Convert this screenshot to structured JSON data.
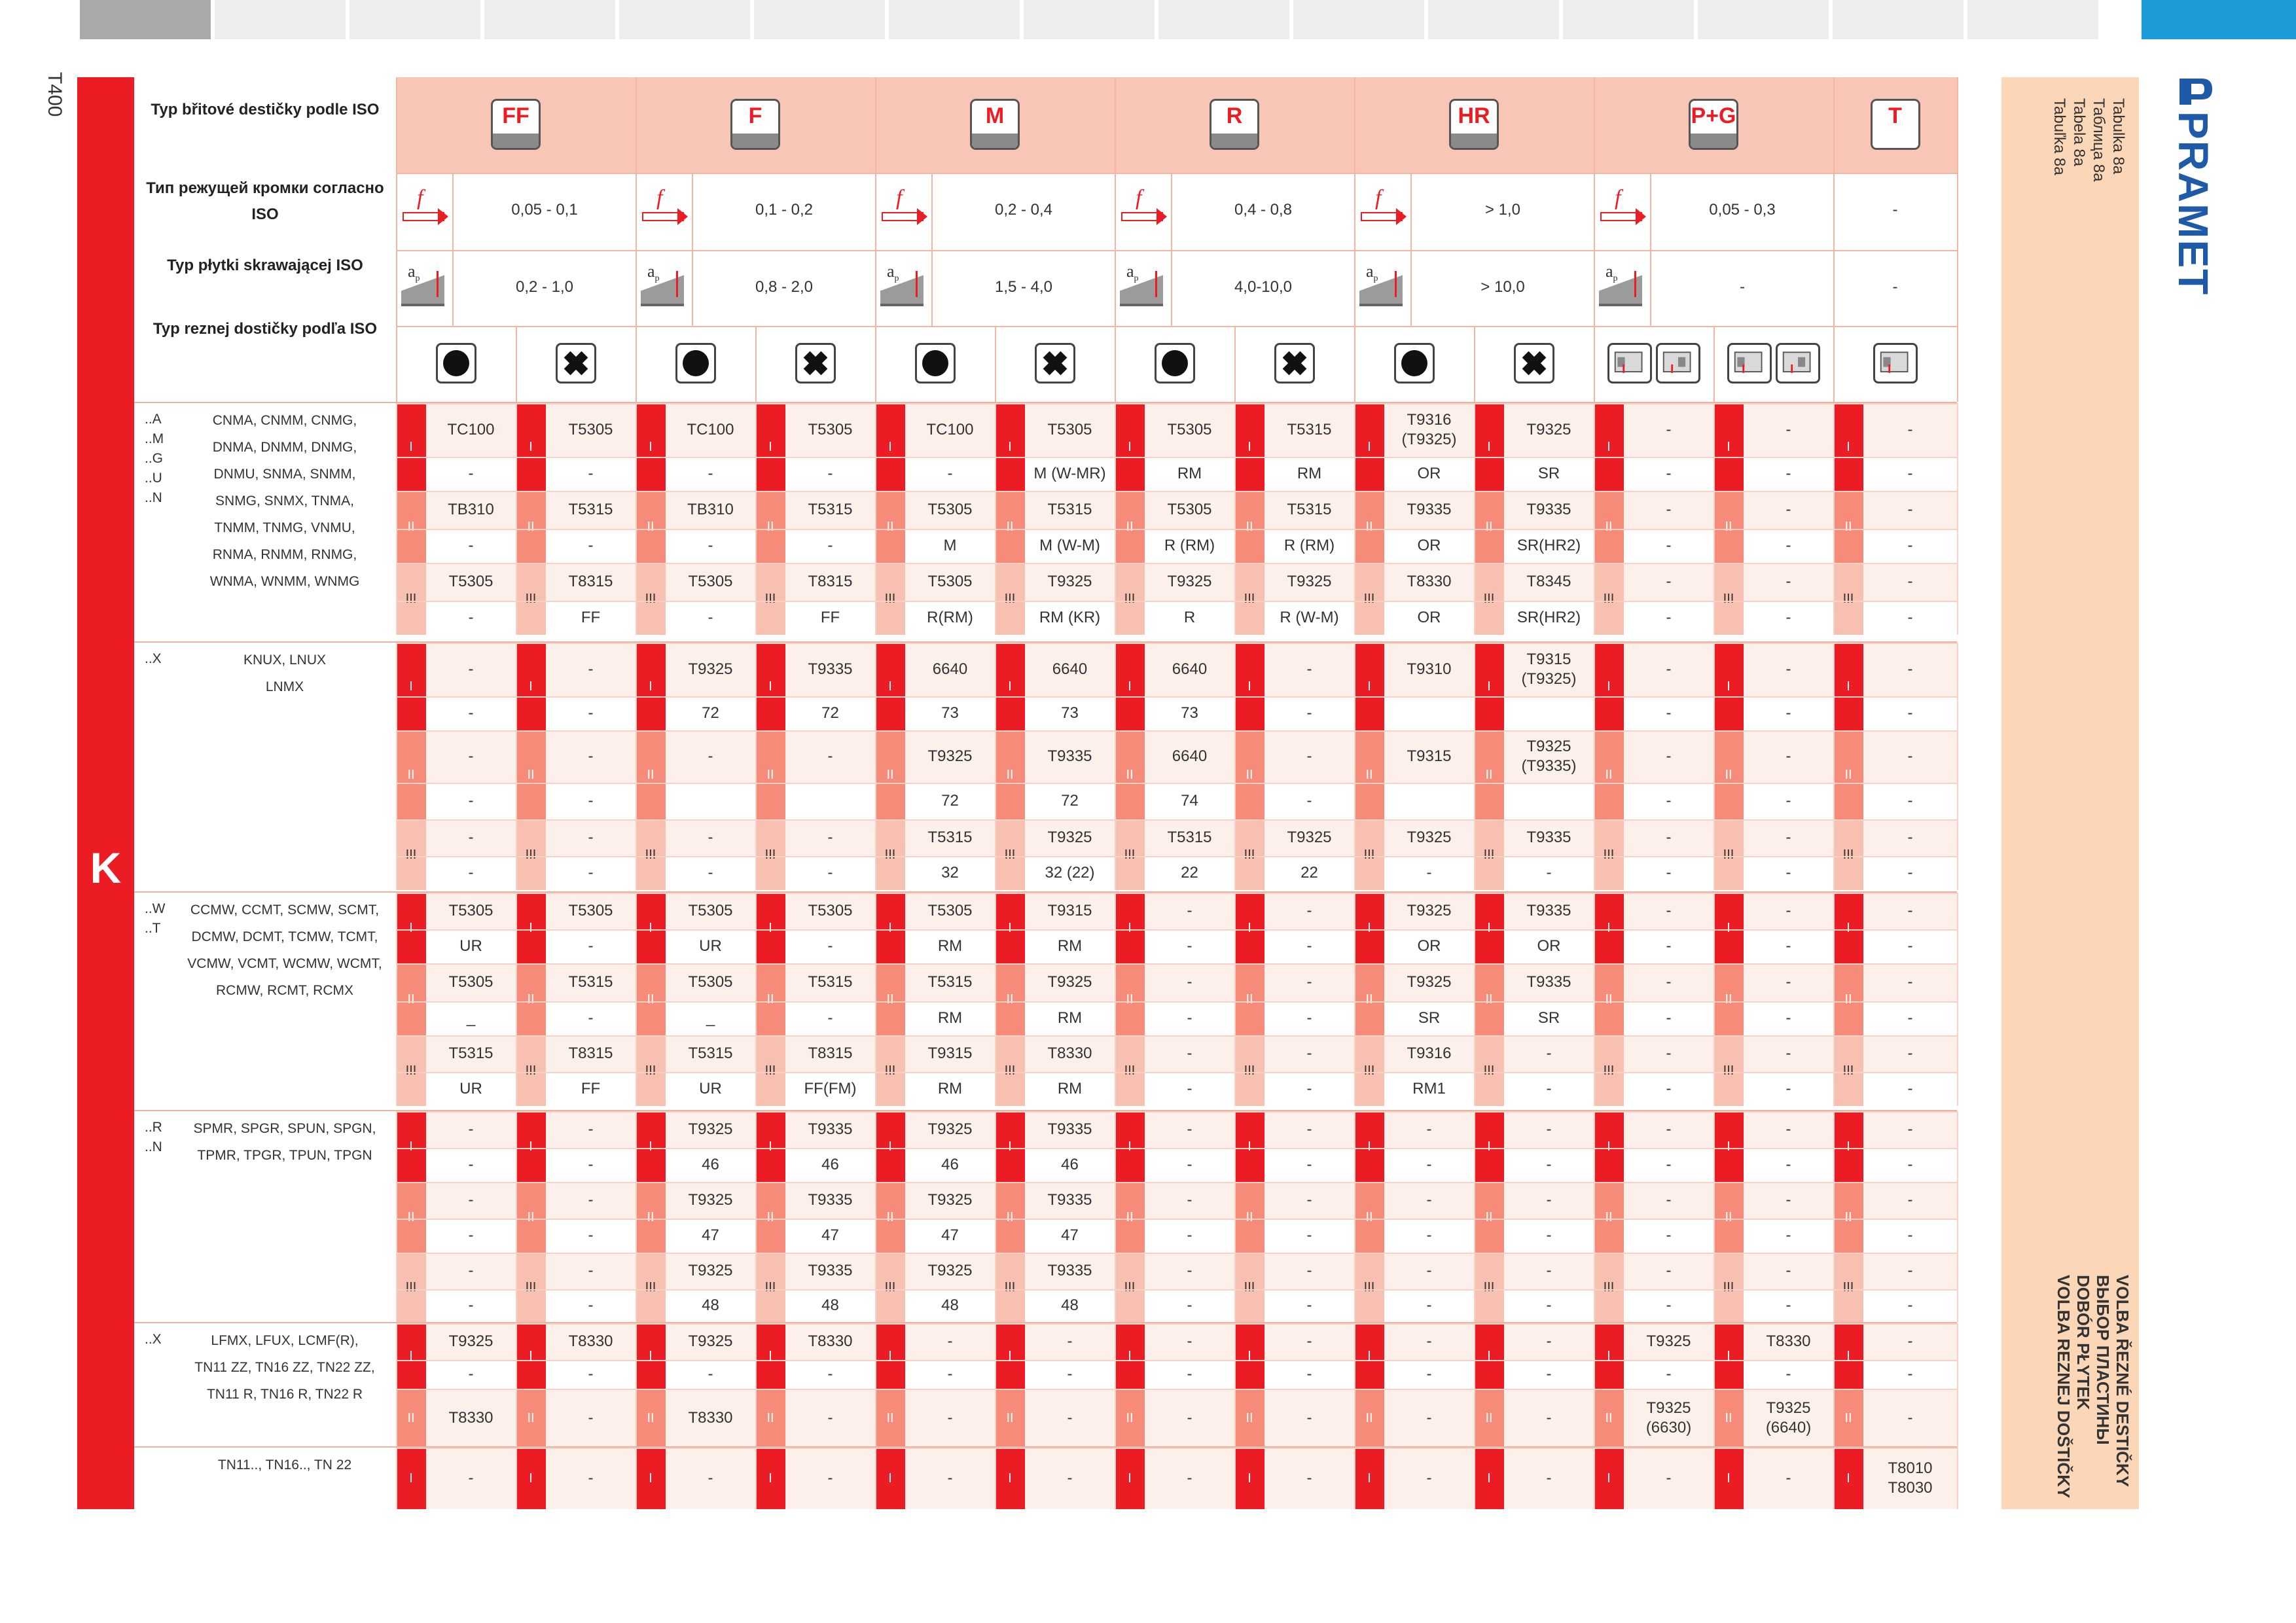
{
  "page_number": "T400",
  "side_letter": "K",
  "brand": "PRAMET",
  "tab_labels": [
    "Tabulka 8a",
    "Таблица 8a",
    "Tabela 8a",
    "Tabuľka 8a"
  ],
  "titles": [
    "VOLBA ŘEZNÉ DESTIČKY",
    "ВЫБОР ПЛАСТИНЫ",
    "DOBÓR PŁYTEK",
    "VOLBA REZNEJ DOŠTIČKY"
  ],
  "header_labels": [
    "Typ břitové destičky podle ISO",
    "Тип режущей кромки согласно ISO",
    "Typ płytki skrawającej ISO",
    "Typ reznej dostičky podľa ISO"
  ],
  "categories": [
    {
      "label": "FF",
      "feed": "0,05 - 0,1",
      "depth": "0,2 - 1,0"
    },
    {
      "label": "F",
      "feed": "0,1 - 0,2",
      "depth": "0,8 - 2,0"
    },
    {
      "label": "M",
      "feed": "0,2 - 0,4",
      "depth": "1,5 - 4,0"
    },
    {
      "label": "R",
      "feed": "0,4 - 0,8",
      "depth": "4,0-10,0"
    },
    {
      "label": "HR",
      "feed": "> 1,0",
      "depth": "> 10,0"
    },
    {
      "label": "P+G",
      "feed": "0,05 - 0,3",
      "depth": "-"
    },
    {
      "label": "T",
      "feed": "-",
      "depth": "-"
    }
  ],
  "icons": {
    "feed": "feed-arrow-icon",
    "depth": "depth-of-cut-icon",
    "circle": "filled-circle-icon",
    "cross": "cross-shape-icon",
    "tool": "insert-tool-icon"
  },
  "colors": {
    "red": "#ec1c24",
    "accent_blue": "#1e9bd7",
    "header_bg": "#f8c6b6",
    "side_panel": "#fbd7b7",
    "row_light": "#fdf0ea"
  },
  "sections": [
    {
      "prefixes": "..A\n..M\n..G\n..U\n..N",
      "codes": [
        "CNMA,   CNMM,   CNMG,",
        "DNMA,   DNMM,   DNMG,",
        "DNMU,   SNMA,   SNMM,",
        "SNMG,   SNMX,   TNMA,",
        "TNMM,   TNMG,   VNMU,",
        "RNMA,  RNMM,   RNMG,",
        "WNMA,  WNMM,   WNMG"
      ],
      "rows": [
        {
          "roman": "I",
          "values": [
            "TC100",
            "T5305",
            "TC100",
            "T5305",
            "TC100",
            "T5305",
            "T5305",
            "T5315",
            "T9316\n(T9325)",
            "T9325",
            "-",
            "-",
            "-"
          ]
        },
        {
          "roman": "",
          "values": [
            "-",
            "-",
            "-",
            "-",
            "-",
            "M (W-MR)",
            "RM",
            "RM",
            "OR",
            "SR",
            "-",
            "-",
            "-"
          ]
        },
        {
          "roman": "II",
          "values": [
            "TB310",
            "T5315",
            "TB310",
            "T5315",
            "T5305",
            "T5315",
            "T5305",
            "T5315",
            "T9335",
            "T9335",
            "-",
            "-",
            "-"
          ]
        },
        {
          "roman": "",
          "values": [
            "-",
            "-",
            "-",
            "-",
            "M",
            "M (W-M)",
            "R (RM)",
            "R (RM)",
            "OR",
            "SR(HR2)",
            "-",
            "-",
            "-"
          ]
        },
        {
          "roman": "III",
          "values": [
            "T5305",
            "T8315",
            "T5305",
            "T8315",
            "T5305",
            "T9325",
            "T9325",
            "T9325",
            "T8330",
            "T8345",
            "-",
            "-",
            "-"
          ]
        },
        {
          "roman": "",
          "values": [
            "-",
            "FF",
            "-",
            "FF",
            "R(RM)",
            "RM (KR)",
            "R",
            "R (W-M)",
            "OR",
            "SR(HR2)",
            "-",
            "-",
            "-"
          ]
        }
      ]
    },
    {
      "prefixes": "..X",
      "codes": [
        "KNUX, LNUX",
        "LNMX"
      ],
      "rows": [
        {
          "roman": "I",
          "values": [
            "-",
            "-",
            "T9325",
            "T9335",
            "6640",
            "6640",
            "6640",
            "-",
            "T9310",
            "T9315\n(T9325)",
            "-",
            "-",
            "-"
          ]
        },
        {
          "roman": "",
          "values": [
            "-",
            "-",
            "72",
            "72",
            "73",
            "73",
            "73",
            "-",
            "",
            "",
            "-",
            "-",
            "-"
          ]
        },
        {
          "roman": "II",
          "values": [
            "-",
            "-",
            "-",
            "-",
            "T9325",
            "T9335",
            "6640",
            "-",
            "T9315",
            "T9325\n(T9335)",
            "-",
            "-",
            "-"
          ]
        },
        {
          "roman": "",
          "values": [
            "-",
            "-",
            "",
            "",
            "72",
            "72",
            "74",
            "-",
            "",
            "",
            "-",
            "-",
            "-"
          ]
        },
        {
          "roman": "III",
          "values": [
            "-",
            "-",
            "-",
            "-",
            "T5315",
            "T9325",
            "T5315",
            "T9325",
            "T9325",
            "T9335",
            "-",
            "-",
            "-"
          ]
        },
        {
          "roman": "",
          "values": [
            "-",
            "-",
            "-",
            "-",
            "32",
            "32 (22)",
            "22",
            "22",
            "-",
            "-",
            "-",
            "-",
            "-"
          ]
        }
      ]
    },
    {
      "prefixes": "..W\n..T",
      "codes": [
        "CCMW, CCMT, SCMW, SCMT,",
        "DCMW,  DCMT, TCMW,  TCMT,",
        "VCMW, VCMT, WCMW,  WCMT,",
        "RCMW,  RCMT,  RCMX"
      ],
      "rows": [
        {
          "roman": "I",
          "values": [
            "T5305",
            "T5305",
            "T5305",
            "T5305",
            "T5305",
            "T9315",
            "-",
            "-",
            "T9325",
            "T9335",
            "-",
            "-",
            "-"
          ]
        },
        {
          "roman": "",
          "values": [
            "UR",
            "-",
            "UR",
            "-",
            "RM",
            "RM",
            "-",
            "-",
            "OR",
            "OR",
            "-",
            "-",
            "-"
          ]
        },
        {
          "roman": "II",
          "values": [
            "T5305",
            "T5315",
            "T5305",
            "T5315",
            "T5315",
            "T9325",
            "-",
            "-",
            "T9325",
            "T9335",
            "-",
            "-",
            "-"
          ]
        },
        {
          "roman": "",
          "values": [
            "_",
            "-",
            "_",
            "-",
            "RM",
            "RM",
            "-",
            "-",
            "SR",
            "SR",
            "-",
            "-",
            "-"
          ]
        },
        {
          "roman": "III",
          "values": [
            "T5315",
            "T8315",
            "T5315",
            "T8315",
            "T9315",
            "T8330",
            "-",
            "-",
            "T9316",
            "-",
            "-",
            "-",
            "-"
          ]
        },
        {
          "roman": "",
          "values": [
            "UR",
            "FF",
            "UR",
            "FF(FM)",
            "RM",
            "RM",
            "-",
            "-",
            "RM1",
            "-",
            "-",
            "-",
            "-"
          ]
        }
      ]
    },
    {
      "prefixes": "..R\n..N",
      "codes": [
        "SPMR, SPGR, SPUN, SPGN,",
        "TPMR, TPGR, TPUN, TPGN"
      ],
      "rows": [
        {
          "roman": "I",
          "values": [
            "-",
            "-",
            "T9325",
            "T9335",
            "T9325",
            "T9335",
            "-",
            "-",
            "-",
            "-",
            "-",
            "-",
            "-"
          ]
        },
        {
          "roman": "",
          "values": [
            "-",
            "-",
            "46",
            "46",
            "46",
            "46",
            "-",
            "-",
            "-",
            "-",
            "-",
            "-",
            "-"
          ]
        },
        {
          "roman": "II",
          "values": [
            "-",
            "-",
            "T9325",
            "T9335",
            "T9325",
            "T9335",
            "-",
            "-",
            "-",
            "-",
            "-",
            "-",
            "-"
          ]
        },
        {
          "roman": "",
          "values": [
            "-",
            "-",
            "47",
            "47",
            "47",
            "47",
            "-",
            "-",
            "-",
            "-",
            "-",
            "-",
            "-"
          ]
        },
        {
          "roman": "III",
          "values": [
            "-",
            "-",
            "T9325",
            "T9335",
            "T9325",
            "T9335",
            "-",
            "-",
            "-",
            "-",
            "-",
            "-",
            "-"
          ]
        },
        {
          "roman": "",
          "values": [
            "-",
            "-",
            "48",
            "48",
            "48",
            "48",
            "-",
            "-",
            "-",
            "-",
            "-",
            "-",
            "-"
          ]
        }
      ]
    },
    {
      "prefixes": "..X",
      "codes": [
        "LFMX, LFUX, LCMF(R),",
        "TN11 ZZ, TN16 ZZ, TN22 ZZ,",
        "TN11 R, TN16 R, TN22 R"
      ],
      "rows": [
        {
          "roman": "I",
          "values": [
            "T9325",
            "T8330",
            "T9325",
            "T8330",
            "-",
            "-",
            "-",
            "-",
            "-",
            "-",
            "T9325",
            "T8330",
            "-"
          ]
        },
        {
          "roman": "",
          "values": [
            "-",
            "-",
            "-",
            "-",
            "-",
            "-",
            "-",
            "-",
            "-",
            "-",
            "-",
            "-",
            "-"
          ]
        },
        {
          "roman": "II",
          "values": [
            "T8330",
            "-",
            "T8330",
            "-",
            "-",
            "-",
            "-",
            "-",
            "-",
            "-",
            "T9325\n(6630)",
            "T9325\n(6640)",
            "-"
          ]
        }
      ]
    },
    {
      "prefixes": "",
      "codes": [
        "TN11.., TN16.., TN 22"
      ],
      "rows": [
        {
          "roman": "I",
          "values": [
            "-",
            "-",
            "-",
            "-",
            "-",
            "-",
            "-",
            "-",
            "-",
            "-",
            "-",
            "-",
            "T8010\nT8030"
          ]
        }
      ]
    }
  ]
}
